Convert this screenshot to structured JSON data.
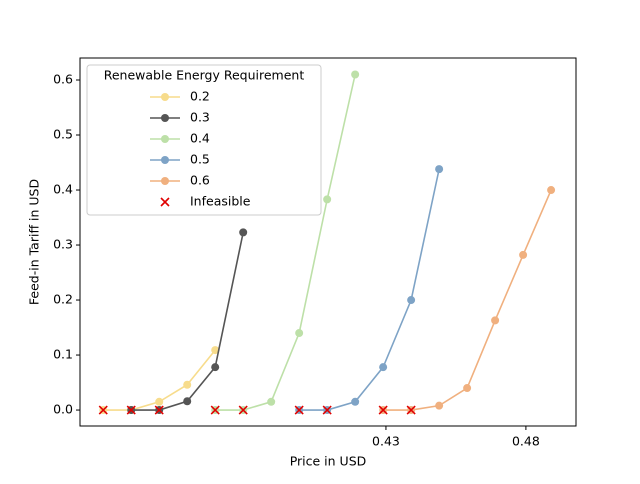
{
  "chart_data": {
    "type": "line",
    "xlabel": "Price in USD",
    "ylabel": "Feed-in Tariff in USD",
    "legend_title": "Renewable Energy Requirement",
    "legend": "upper left",
    "xlim": [
      0.3207,
      0.4979
    ],
    "ylim": [
      -0.029,
      0.64
    ],
    "xticks": [
      0.43,
      0.48
    ],
    "yticks": [
      {
        "value": 0,
        "label": "0.0"
      },
      0.1,
      0.2,
      0.3,
      0.4,
      0.5,
      0.6
    ],
    "series": [
      {
        "name": "0.2",
        "color": "#f7dc8c",
        "x": [
          0.329,
          0.339,
          0.349,
          0.359,
          0.369
        ],
        "values": [
          0,
          0,
          0.015,
          0.046,
          0.109
        ]
      },
      {
        "name": "0.3",
        "color": "#555555",
        "x": [
          0.339,
          0.349,
          0.359,
          0.369,
          0.379
        ],
        "values": [
          0,
          0,
          0.016,
          0.078,
          0.323
        ]
      },
      {
        "name": "0.4",
        "color": "#bde0a8",
        "x": [
          0.369,
          0.379,
          0.389,
          0.399,
          0.409,
          0.419
        ],
        "values": [
          0,
          0,
          0.015,
          0.14,
          0.383,
          0.61
        ]
      },
      {
        "name": "0.5",
        "color": "#7ea3c6",
        "x": [
          0.399,
          0.409,
          0.419,
          0.429,
          0.439,
          0.449
        ],
        "values": [
          0,
          0,
          0.015,
          0.078,
          0.2,
          0.438
        ]
      },
      {
        "name": "0.6",
        "color": "#f0b07f",
        "x": [
          0.429,
          0.439,
          0.449,
          0.459,
          0.469,
          0.479,
          0.489
        ],
        "values": [
          0,
          0,
          0.008,
          0.04,
          0.163,
          0.282,
          0.4
        ]
      },
      {
        "name": "Infeasible",
        "color": "#e00000",
        "marker": "x",
        "x": [
          0.329,
          0.339,
          0.349,
          0.369,
          0.379,
          0.399,
          0.409,
          0.429,
          0.439
        ],
        "values": [
          0,
          0,
          0,
          0,
          0,
          0,
          0,
          0,
          0
        ]
      }
    ]
  }
}
